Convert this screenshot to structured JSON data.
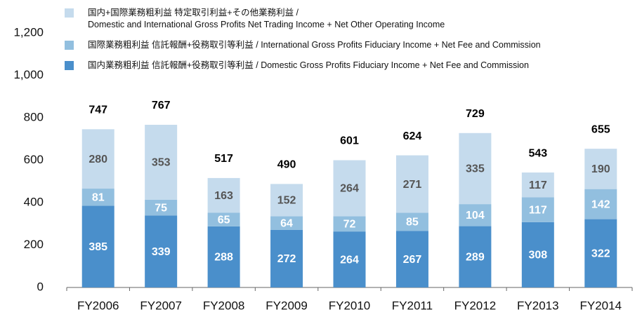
{
  "chart_data": {
    "type": "stacked_bar",
    "categories": [
      "FY2006",
      "FY2007",
      "FY2008",
      "FY2009",
      "FY2010",
      "FY2011",
      "FY2012",
      "FY2013",
      "FY2014"
    ],
    "series": [
      {
        "name": "国内業務粗利益  信託報酬+役務取引等利益 / Domestic Gross Profits Fiduciary Income + Net Fee and Commission",
        "color": "#4a8fcb",
        "values": [
          385,
          339,
          288,
          272,
          264,
          267,
          289,
          308,
          322
        ]
      },
      {
        "name": "国際業務粗利益  信託報酬+役務取引等利益 / International Gross Profits Fiduciary Income + Net Fee and Commission",
        "color": "#92bfdf",
        "values": [
          81,
          75,
          65,
          64,
          72,
          85,
          104,
          117,
          142
        ]
      },
      {
        "name": "国内+国際業務粗利益  特定取引利益+その他業務利益 /\nDomestic and International Gross Profits Net Trading Income + Net Other Operating Income",
        "color": "#c5dbed",
        "values": [
          280,
          353,
          163,
          152,
          264,
          271,
          335,
          117,
          190
        ]
      }
    ],
    "totals": [
      747,
      767,
      517,
      490,
      601,
      624,
      729,
      543,
      655
    ],
    "ylim": [
      0,
      1200
    ],
    "yticks": [
      0,
      200,
      400,
      600,
      800,
      {
        "value": 1000,
        "label": "1,000"
      },
      {
        "value": 1200,
        "label": "1,200"
      }
    ]
  }
}
